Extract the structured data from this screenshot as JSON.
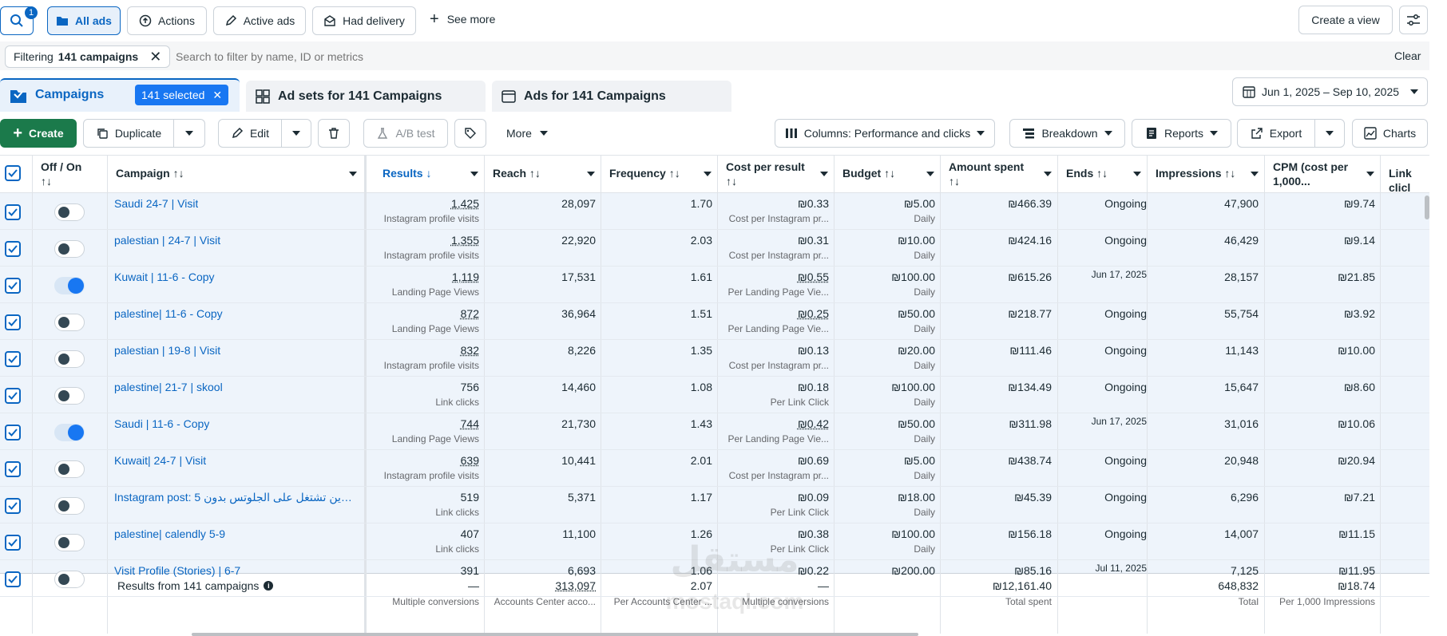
{
  "toolbar": {
    "search_badge": "1",
    "all_ads": "All ads",
    "actions": "Actions",
    "active_ads": "Active ads",
    "had_delivery": "Had delivery",
    "see_more": "See more",
    "create_view": "Create a view"
  },
  "filter": {
    "prefix": "Filtering",
    "count_label": "141 campaigns",
    "placeholder": "Search to filter by name, ID or metrics",
    "clear": "Clear"
  },
  "tabs": {
    "campaigns": "Campaigns",
    "selected": "141 selected",
    "adsets": "Ad sets for 141 Campaigns",
    "ads": "Ads for 141 Campaigns",
    "date_range": "Jun 1, 2025 – Sep 10, 2025"
  },
  "actions": {
    "create": "Create",
    "duplicate": "Duplicate",
    "edit": "Edit",
    "ab_test": "A/B test",
    "more": "More",
    "columns": "Columns: Performance and clicks",
    "breakdown": "Breakdown",
    "reports": "Reports",
    "export": "Export",
    "charts": "Charts"
  },
  "headers": {
    "offon": "Off / On",
    "campaign": "Campaign",
    "results": "Results",
    "reach": "Reach",
    "frequency": "Frequency",
    "cpr": "Cost per result",
    "budget": "Budget",
    "spent": "Amount spent",
    "ends": "Ends",
    "impressions": "Impressions",
    "cpm": "CPM (cost per 1,000...",
    "linkclicks": "Link clicl"
  },
  "rows": [
    {
      "name": "Saudi 24-7 | Visit",
      "on": false,
      "results": "1,425",
      "results_type": "Instagram profile visits",
      "reach": "28,097",
      "freq": "1.70",
      "cpr": "₪0.33",
      "cpr_type": "Cost per Instagram pr...",
      "budget": "₪5.00",
      "budget_type": "Daily",
      "spent": "₪466.39",
      "ends": "Ongoing",
      "impr": "47,900",
      "cpm": "₪9.74"
    },
    {
      "name": "palestian | 24-7 | Visit",
      "on": false,
      "results": "1,355",
      "results_type": "Instagram profile visits",
      "reach": "22,920",
      "freq": "2.03",
      "cpr": "₪0.31",
      "cpr_type": "Cost per Instagram pr...",
      "budget": "₪10.00",
      "budget_type": "Daily",
      "spent": "₪424.16",
      "ends": "Ongoing",
      "impr": "46,429",
      "cpm": "₪9.14"
    },
    {
      "name": "Kuwait | 11-6 - Copy",
      "on": true,
      "results": "1,119",
      "results_type": "Landing Page Views",
      "reach": "17,531",
      "freq": "1.61",
      "cpr": "₪0.55",
      "cpr_type": "Per Landing Page Vie...",
      "budget": "₪100.00",
      "budget_type": "Daily",
      "spent": "₪615.26",
      "ends": "Jun 17, 2025",
      "impr": "28,157",
      "cpm": "₪21.85"
    },
    {
      "name": "palestine| 11-6 - Copy",
      "on": false,
      "results": "872",
      "results_type": "Landing Page Views",
      "reach": "36,964",
      "freq": "1.51",
      "cpr": "₪0.25",
      "cpr_type": "Per Landing Page Vie...",
      "budget": "₪50.00",
      "budget_type": "Daily",
      "spent": "₪218.77",
      "ends": "Ongoing",
      "impr": "55,754",
      "cpm": "₪3.92"
    },
    {
      "name": "palestian | 19-8 | Visit",
      "on": false,
      "results": "832",
      "results_type": "Instagram profile visits",
      "reach": "8,226",
      "freq": "1.35",
      "cpr": "₪0.13",
      "cpr_type": "Cost per Instagram pr...",
      "budget": "₪20.00",
      "budget_type": "Daily",
      "spent": "₪111.46",
      "ends": "Ongoing",
      "impr": "11,143",
      "cpm": "₪10.00"
    },
    {
      "name": "palestine| 21-7 | skool",
      "on": false,
      "results": "756",
      "results_type": "Link clicks",
      "reach": "14,460",
      "freq": "1.08",
      "cpr": "₪0.18",
      "cpr_type": "Per Link Click",
      "budget": "₪100.00",
      "budget_type": "Daily",
      "spent": "₪134.49",
      "ends": "Ongoing",
      "impr": "15,647",
      "cpm": "₪8.60"
    },
    {
      "name": "Saudi | 11-6 - Copy",
      "on": true,
      "results": "744",
      "results_type": "Landing Page Views",
      "reach": "21,730",
      "freq": "1.43",
      "cpr": "₪0.42",
      "cpr_type": "Per Landing Page Vie...",
      "budget": "₪50.00",
      "budget_type": "Daily",
      "spent": "₪311.98",
      "ends": "Jun 17, 2025",
      "impr": "31,016",
      "cpm": "₪10.06"
    },
    {
      "name": "Kuwait| 24-7 | Visit",
      "on": false,
      "results": "639",
      "results_type": "Instagram profile visits",
      "reach": "10,441",
      "freq": "2.01",
      "cpr": "₪0.69",
      "cpr_type": "Cost per Instagram pr...",
      "budget": "₪5.00",
      "budget_type": "Daily",
      "spent": "₪438.74",
      "ends": "Ongoing",
      "impr": "20,948",
      "cpm": "₪20.94"
    },
    {
      "name": "Instagram post: 5 رين تشتغل على الجلوتس بدون...",
      "on": false,
      "results": "519",
      "results_type": "Link clicks",
      "reach": "5,371",
      "freq": "1.17",
      "cpr": "₪0.09",
      "cpr_type": "Per Link Click",
      "budget": "₪18.00",
      "budget_type": "Daily",
      "spent": "₪45.39",
      "ends": "Ongoing",
      "impr": "6,296",
      "cpm": "₪7.21"
    },
    {
      "name": "palestine| calendly 5-9",
      "on": false,
      "results": "407",
      "results_type": "Link clicks",
      "reach": "11,100",
      "freq": "1.26",
      "cpr": "₪0.38",
      "cpr_type": "Per Link Click",
      "budget": "₪100.00",
      "budget_type": "Daily",
      "spent": "₪156.18",
      "ends": "Ongoing",
      "impr": "14,007",
      "cpm": "₪11.15"
    },
    {
      "name": "Visit Profile (Stories) | 6-7",
      "on": false,
      "results": "391",
      "results_type": "",
      "reach": "6,693",
      "freq": "1.06",
      "cpr": "₪0.22",
      "cpr_type": "",
      "budget": "₪200.00",
      "budget_type": "",
      "spent": "₪85.16",
      "ends": "Jul 11, 2025",
      "impr": "7,125",
      "cpm": "₪11.95"
    }
  ],
  "totals": {
    "label": "Results from 141 campaigns",
    "results": "—",
    "results_sub": "Multiple conversions",
    "reach": "313,097",
    "reach_sub": "Accounts Center acco...",
    "freq": "2.07",
    "freq_sub": "Per Accounts Center ...",
    "cpr": "—",
    "cpr_sub": "Multiple conversions",
    "spent": "₪12,161.40",
    "spent_sub": "Total spent",
    "impr": "648,832",
    "impr_sub": "Total",
    "cpm": "₪18.74",
    "cpm_sub": "Per 1,000 Impressions"
  },
  "watermark": "mostaql.com",
  "colors": {
    "accent": "#0a66c2",
    "create": "#1b7a4b",
    "selected_bg": "#1877f2"
  }
}
